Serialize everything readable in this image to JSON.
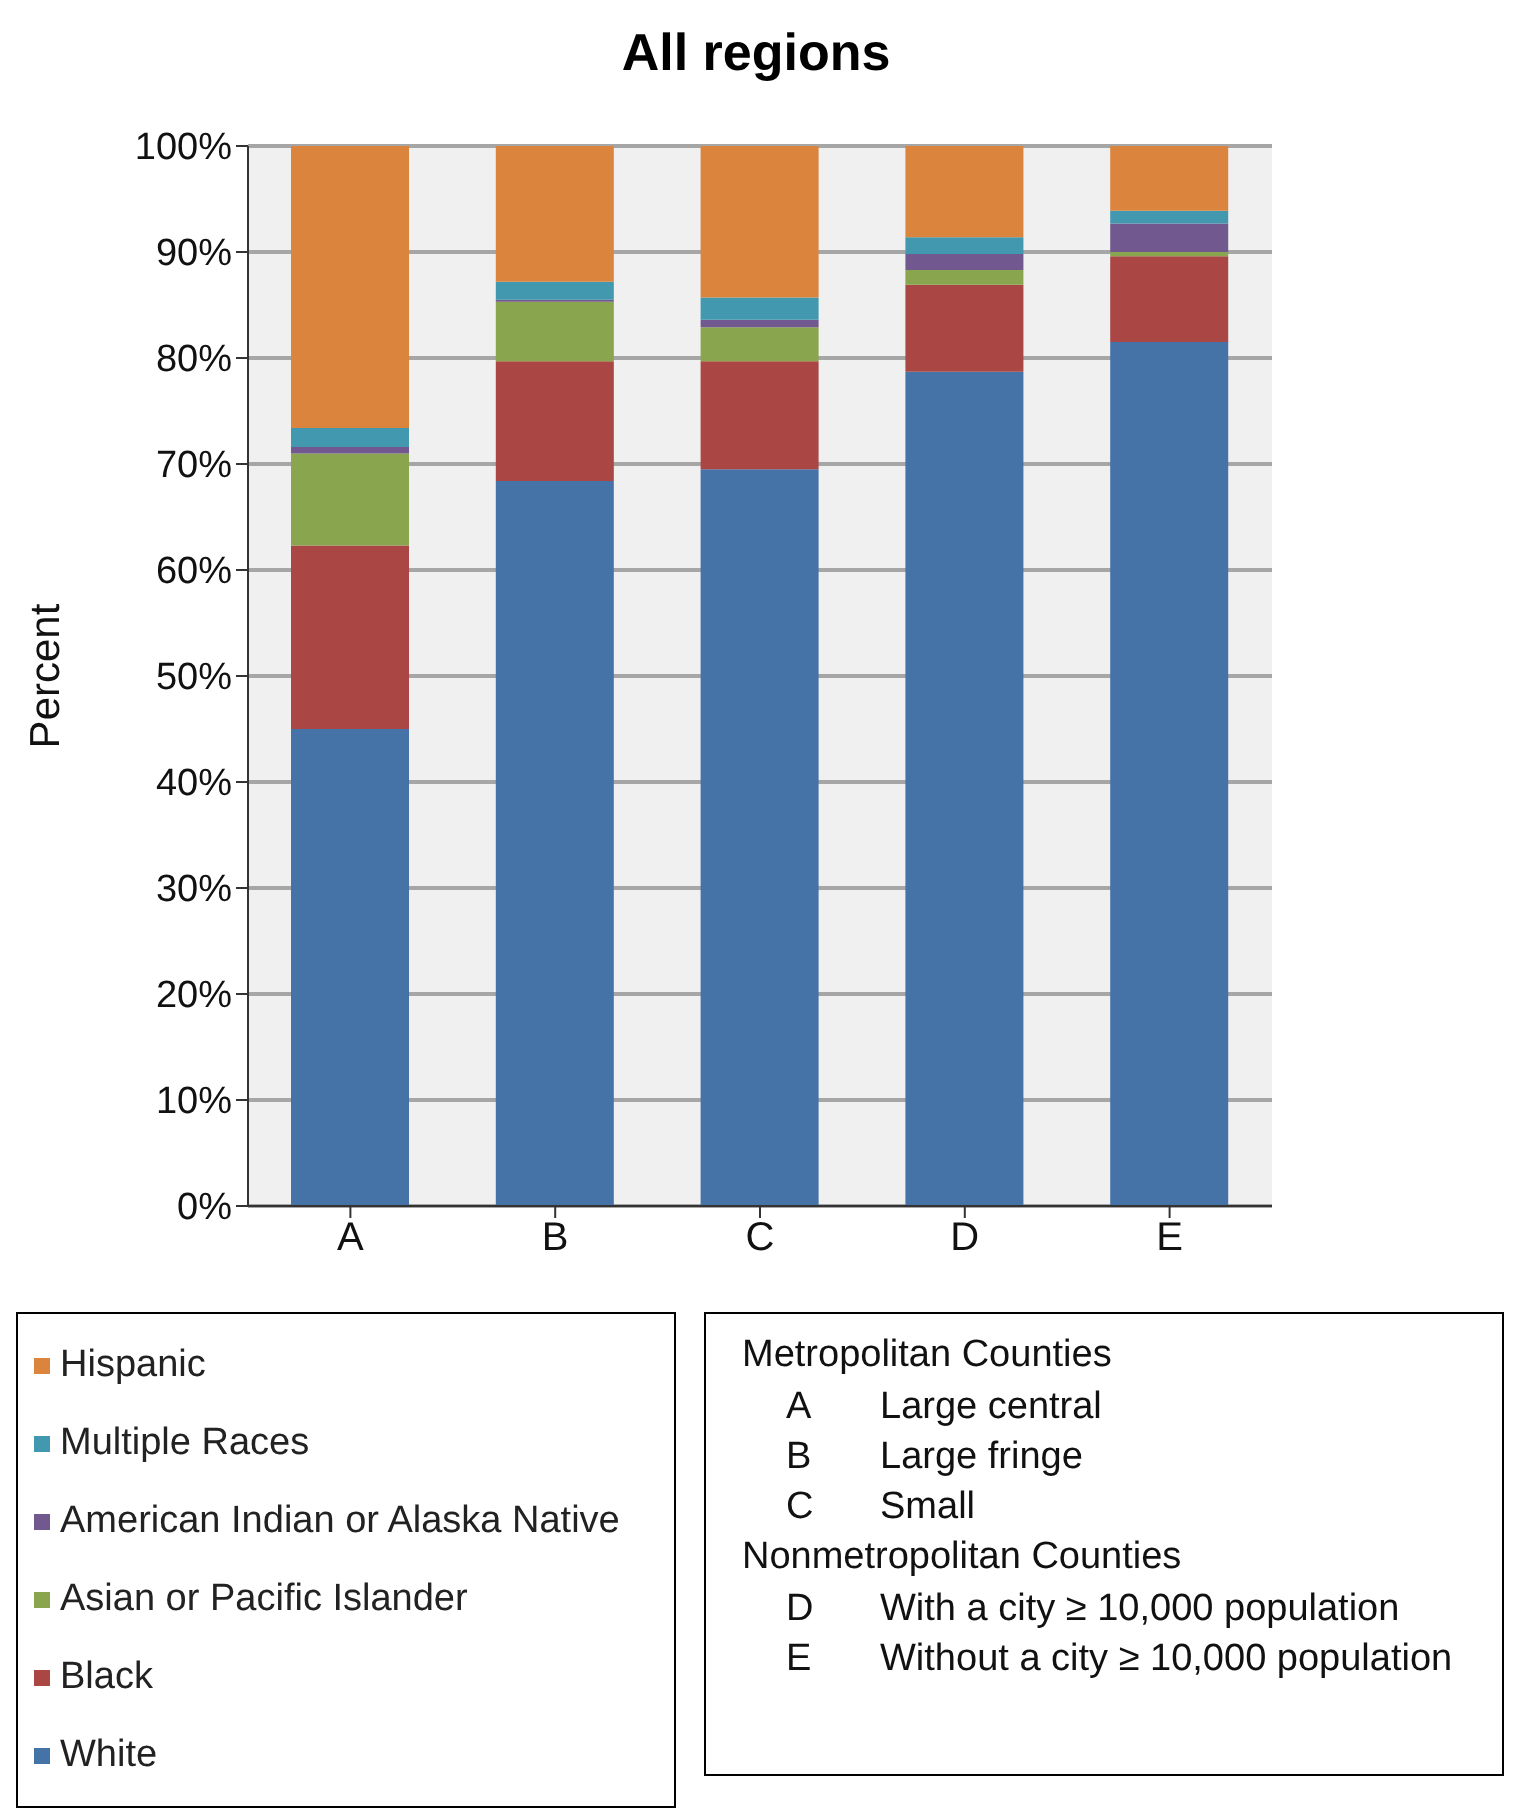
{
  "chart_data": {
    "type": "bar",
    "title": "All regions",
    "ylabel": "Percent",
    "categories": [
      "A",
      "B",
      "C",
      "D",
      "E"
    ],
    "stacked": true,
    "ylim": [
      0,
      100
    ],
    "yticks": [
      {
        "value": 0,
        "label": "0%"
      },
      {
        "value": 10,
        "label": "10%"
      },
      {
        "value": 20,
        "label": "20%"
      },
      {
        "value": 30,
        "label": "30%"
      },
      {
        "value": 40,
        "label": "40%"
      },
      {
        "value": 50,
        "label": "50%"
      },
      {
        "value": 60,
        "label": "60%"
      },
      {
        "value": 70,
        "label": "70%"
      },
      {
        "value": 80,
        "label": "80%"
      },
      {
        "value": 90,
        "label": "90%"
      },
      {
        "value": 100,
        "label": "100%"
      }
    ],
    "grid": "y",
    "legend": "bottom",
    "series": [
      {
        "name": "White",
        "color": "#4572a7",
        "values": [
          45.0,
          68.4,
          69.5,
          78.7,
          81.5
        ]
      },
      {
        "name": "Black",
        "color": "#aa4643",
        "values": [
          17.3,
          11.3,
          10.2,
          8.2,
          8.1
        ]
      },
      {
        "name": "Asian or Pacific Islander",
        "color": "#89a54e",
        "values": [
          8.7,
          5.6,
          3.2,
          1.4,
          0.4
        ]
      },
      {
        "name": "American Indian or Alaska Native",
        "color": "#71588f",
        "values": [
          0.6,
          0.2,
          0.7,
          1.5,
          2.7
        ]
      },
      {
        "name": "Multiple Races",
        "color": "#4198af",
        "values": [
          1.8,
          1.7,
          2.1,
          1.6,
          1.2
        ]
      },
      {
        "name": "Hispanic",
        "color": "#db843d",
        "values": [
          26.6,
          12.8,
          14.3,
          8.6,
          6.1
        ]
      }
    ],
    "annotations": [
      "Metropolitan Counties",
      "A     Large central",
      "B     Large fringe",
      "C     Small",
      "Nonmetropolitan Counties",
      "D     With a city ≥ 10,000 population",
      "E     Without a city ≥ 10,000 population"
    ]
  }
}
